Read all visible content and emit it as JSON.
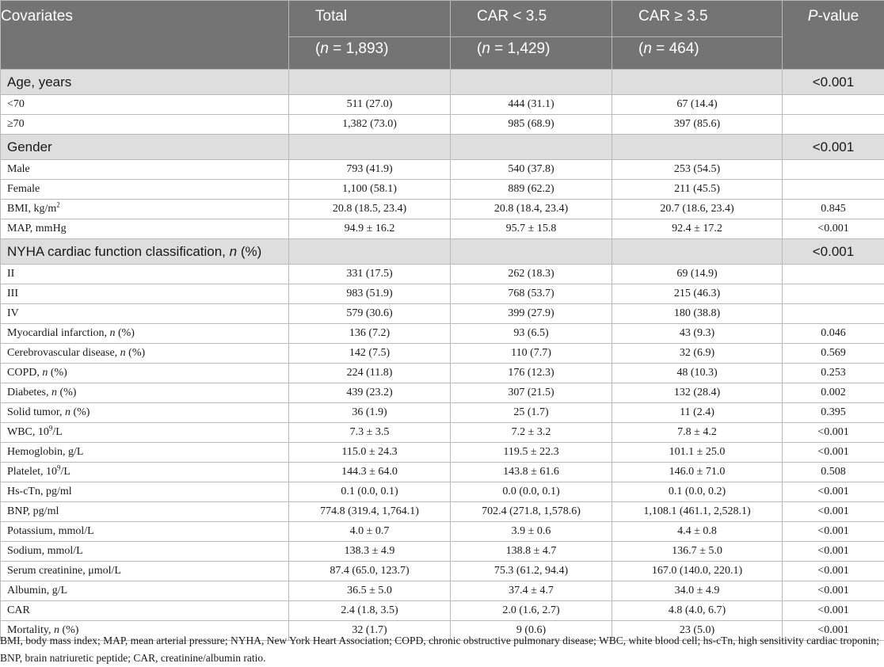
{
  "header": {
    "covariates": "Covariates",
    "total": "Total",
    "total_n": "1,893",
    "car_low": "CAR < 3.5",
    "car_low_n": "1,429",
    "car_high": "CAR ≥ 3.5",
    "car_high_n": "464",
    "p_italic": "P",
    "p_rest": "-value",
    "n_open": "(",
    "n_letter": "n",
    "n_eq": " = ",
    "n_close": ")"
  },
  "sections": {
    "age": {
      "label": "Age, years",
      "p": "<0.001"
    },
    "gender": {
      "label": "Gender",
      "p": "<0.001"
    },
    "nyha": {
      "label_pre": "NYHA cardiac function classification, ",
      "label_n": "n",
      "label_post": " (%)",
      "p": "<0.001"
    }
  },
  "rows": {
    "age_lt70": {
      "label": "<70",
      "total": "511 (27.0)",
      "low": "444 (31.1)",
      "high": "67 (14.4)",
      "p": ""
    },
    "age_ge70": {
      "label": "≥70",
      "total": "1,382 (73.0)",
      "low": "985 (68.9)",
      "high": "397 (85.6)",
      "p": ""
    },
    "male": {
      "label": "Male",
      "total": "793 (41.9)",
      "low": "540 (37.8)",
      "high": "253 (54.5)",
      "p": ""
    },
    "female": {
      "label": "Female",
      "total": "1,100 (58.1)",
      "low": "889 (62.2)",
      "high": "211 (45.5)",
      "p": ""
    },
    "bmi": {
      "label": "BMI, kg/m",
      "sup": "2",
      "total": "20.8 (18.5, 23.4)",
      "low": "20.8 (18.4, 23.4)",
      "high": "20.7 (18.6, 23.4)",
      "p": "0.845"
    },
    "map": {
      "label": "MAP, mmHg",
      "total": "94.9 ± 16.2",
      "low": "95.7 ± 15.8",
      "high": "92.4 ± 17.2",
      "p": "<0.001"
    },
    "nyha2": {
      "label": "II",
      "total": "331 (17.5)",
      "low": "262 (18.3)",
      "high": "69 (14.9)",
      "p": ""
    },
    "nyha3": {
      "label": "III",
      "total": "983 (51.9)",
      "low": "768 (53.7)",
      "high": "215 (46.3)",
      "p": ""
    },
    "nyha4": {
      "label": "IV",
      "total": "579 (30.6)",
      "low": "399 (27.9)",
      "high": "180 (38.8)",
      "p": ""
    },
    "mi": {
      "label": "Myocardial infarction, ",
      "n": "n",
      "suffix": " (%)",
      "total": "136 (7.2)",
      "low": "93 (6.5)",
      "high": "43 (9.3)",
      "p": "0.046"
    },
    "cvd": {
      "label": "Cerebrovascular disease, ",
      "n": "n",
      "suffix": " (%)",
      "total": "142 (7.5)",
      "low": "110 (7.7)",
      "high": "32 (6.9)",
      "p": "0.569"
    },
    "copd": {
      "label": "COPD, ",
      "n": "n",
      "suffix": " (%)",
      "total": "224 (11.8)",
      "low": "176 (12.3)",
      "high": "48 (10.3)",
      "p": "0.253"
    },
    "diabetes": {
      "label": "Diabetes, ",
      "n": "n",
      "suffix": " (%)",
      "total": "439 (23.2)",
      "low": "307 (21.5)",
      "high": "132 (28.4)",
      "p": "0.002"
    },
    "tumor": {
      "label": "Solid tumor, ",
      "n": "n",
      "suffix": " (%)",
      "total": "36 (1.9)",
      "low": "25 (1.7)",
      "high": "11 (2.4)",
      "p": "0.395"
    },
    "wbc": {
      "label": "WBC, 10",
      "sup": "9",
      "suffix": "/L",
      "total": "7.3 ± 3.5",
      "low": "7.2 ± 3.2",
      "high": "7.8 ± 4.2",
      "p": "<0.001"
    },
    "hgb": {
      "label": "Hemoglobin, g/L",
      "total": "115.0 ± 24.3",
      "low": "119.5 ± 22.3",
      "high": "101.1 ± 25.0",
      "p": "<0.001"
    },
    "plt": {
      "label": "Platelet, 10",
      "sup": "9",
      "suffix": "/L",
      "total": "144.3 ± 64.0",
      "low": "143.8 ± 61.6",
      "high": "146.0 ± 71.0",
      "p": "0.508"
    },
    "hsctn": {
      "label": "Hs-cTn, pg/ml",
      "total": "0.1 (0.0, 0.1)",
      "low": "0.0 (0.0, 0.1)",
      "high": "0.1 (0.0, 0.2)",
      "p": "<0.001"
    },
    "bnp": {
      "label": "BNP, pg/ml",
      "total": "774.8 (319.4, 1,764.1)",
      "low": "702.4 (271.8, 1,578.6)",
      "high": "1,108.1 (461.1, 2,528.1)",
      "p": "<0.001"
    },
    "k": {
      "label": "Potassium, mmol/L",
      "total": "4.0 ± 0.7",
      "low": "3.9 ± 0.6",
      "high": "4.4 ± 0.8",
      "p": "<0.001"
    },
    "na": {
      "label": "Sodium, mmol/L",
      "total": "138.3 ± 4.9",
      "low": "138.8 ± 4.7",
      "high": "136.7 ± 5.0",
      "p": "<0.001"
    },
    "scr": {
      "label": "Serum creatinine, μmol/L",
      "total": "87.4 (65.0, 123.7)",
      "low": "75.3 (61.2, 94.4)",
      "high": "167.0 (140.0, 220.1)",
      "p": "<0.001"
    },
    "alb": {
      "label": "Albumin, g/L",
      "total": "36.5 ± 5.0",
      "low": "37.4 ± 4.7",
      "high": "34.0 ± 4.9",
      "p": "<0.001"
    },
    "car": {
      "label": "CAR",
      "total": "2.4 (1.8, 3.5)",
      "low": "2.0 (1.6, 2.7)",
      "high": "4.8 (4.0, 6.7)",
      "p": "<0.001"
    },
    "mort": {
      "label": "Mortality, ",
      "n": "n",
      "suffix": " (%)",
      "total": "32 (1.7)",
      "low": "9 (0.6)",
      "high": "23 (5.0)",
      "p": "<0.001"
    }
  },
  "footnote": "BMI, body mass index; MAP, mean arterial pressure; NYHA, New York Heart Association; COPD, chronic obstructive pulmonary disease; WBC, white blood cell; hs-cTn, high sensitivity cardiac troponin; BNP, brain natriuretic peptide; CAR, creatinine/albumin ratio."
}
